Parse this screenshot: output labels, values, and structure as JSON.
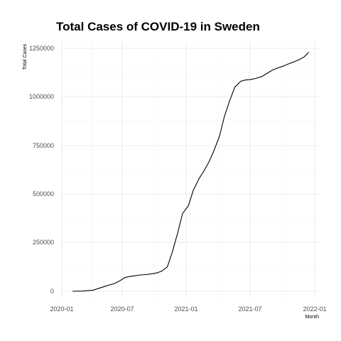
{
  "chart_data": {
    "type": "line",
    "title": "Total Cases of COVID-19 in Sweden",
    "xlabel": "Month",
    "ylabel": "Total Cases",
    "x_ticks": [
      "2020-01",
      "2020-07",
      "2021-01",
      "2021-07",
      "2022-01"
    ],
    "y_ticks": [
      "0",
      "250000",
      "500000",
      "750000",
      "1000000",
      "1250000"
    ],
    "xlim": [
      "2020-01-01",
      "2022-01-01"
    ],
    "ylim": [
      0,
      1250000
    ],
    "grid": true,
    "legend": "none",
    "series": [
      {
        "color": "#000000",
        "x": [
          "2020-02-01",
          "2020-03-01",
          "2020-04-01",
          "2020-04-15",
          "2020-05-01",
          "2020-05-15",
          "2020-06-01",
          "2020-06-15",
          "2020-07-01",
          "2020-07-15",
          "2020-08-01",
          "2020-08-15",
          "2020-09-01",
          "2020-09-15",
          "2020-10-01",
          "2020-10-15",
          "2020-11-01",
          "2020-11-15",
          "2020-12-01",
          "2020-12-15",
          "2021-01-01",
          "2021-01-15",
          "2021-02-01",
          "2021-02-15",
          "2021-03-01",
          "2021-03-15",
          "2021-04-01",
          "2021-04-15",
          "2021-05-01",
          "2021-05-15",
          "2021-06-01",
          "2021-06-15",
          "2021-07-01",
          "2021-07-15",
          "2021-08-01",
          "2021-08-15",
          "2021-09-01",
          "2021-09-15",
          "2021-10-01",
          "2021-10-15",
          "2021-11-01",
          "2021-11-15",
          "2021-12-01",
          "2021-12-15"
        ],
        "y": [
          0,
          1000,
          6000,
          14000,
          23000,
          31000,
          40000,
          52000,
          70000,
          76000,
          80000,
          84000,
          86000,
          89000,
          94000,
          103000,
          125000,
          200000,
          300000,
          400000,
          440000,
          520000,
          580000,
          620000,
          665000,
          720000,
          800000,
          900000,
          985000,
          1050000,
          1080000,
          1087000,
          1090000,
          1095000,
          1105000,
          1120000,
          1138000,
          1148000,
          1158000,
          1168000,
          1180000,
          1190000,
          1205000,
          1230000
        ]
      }
    ]
  }
}
